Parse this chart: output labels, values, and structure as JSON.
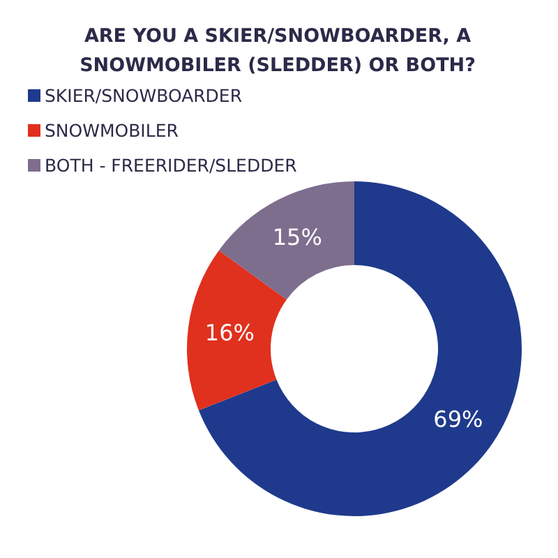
{
  "chart_data": {
    "type": "donut",
    "title": "ARE YOU A SKIER/SNOWBOARDER, A SNOWMOBILER (SLEDDER) OR BOTH?",
    "categories": [
      "SKIER/SNOWBOARDER",
      "SNOWMOBILER",
      "BOTH - FREERIDER/SLEDDER"
    ],
    "values": [
      69,
      16,
      15
    ],
    "colors": [
      "#1f3a8c",
      "#e0301e",
      "#7e6e8e"
    ],
    "value_labels": [
      "69%",
      "16%",
      "15%"
    ],
    "legend": "top left"
  }
}
